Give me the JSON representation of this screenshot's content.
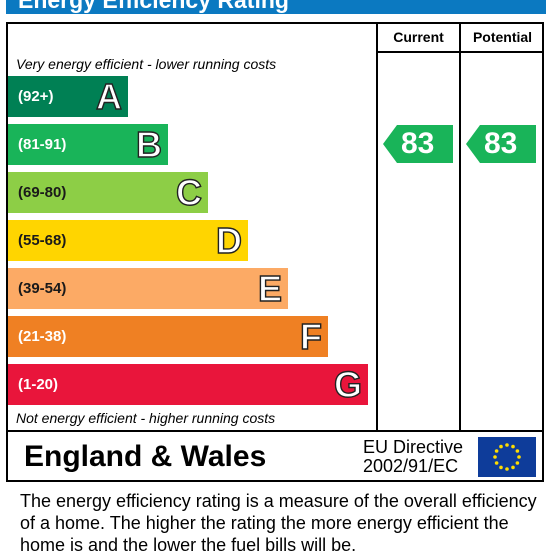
{
  "title": "Energy Efficiency Rating",
  "columns": {
    "current": "Current",
    "potential": "Potential"
  },
  "notes": {
    "top": "Very energy efficient - lower running costs",
    "bottom": "Not energy efficient - higher running costs"
  },
  "chart_data": {
    "type": "bar",
    "title": "Energy Efficiency Rating",
    "categories": [
      "A",
      "B",
      "C",
      "D",
      "E",
      "F",
      "G"
    ],
    "ranges": [
      "(92+)",
      "(81-91)",
      "(69-80)",
      "(55-68)",
      "(39-54)",
      "(21-38)",
      "(1-20)"
    ],
    "colors": [
      "#008054",
      "#19b459",
      "#8dce46",
      "#ffd500",
      "#fcaa65",
      "#ef8023",
      "#e9153b"
    ],
    "current": 83,
    "potential": 83,
    "current_band": "B",
    "potential_band": "B",
    "indicator_color": "#19b459"
  },
  "footer": {
    "region": "England & Wales",
    "directive_line1": "EU Directive",
    "directive_line2": "2002/91/EC"
  },
  "description": "The energy efficiency rating is a measure of the overall efficiency of a home.  The higher the rating the more energy efficient the home is and the lower the fuel bills will be."
}
